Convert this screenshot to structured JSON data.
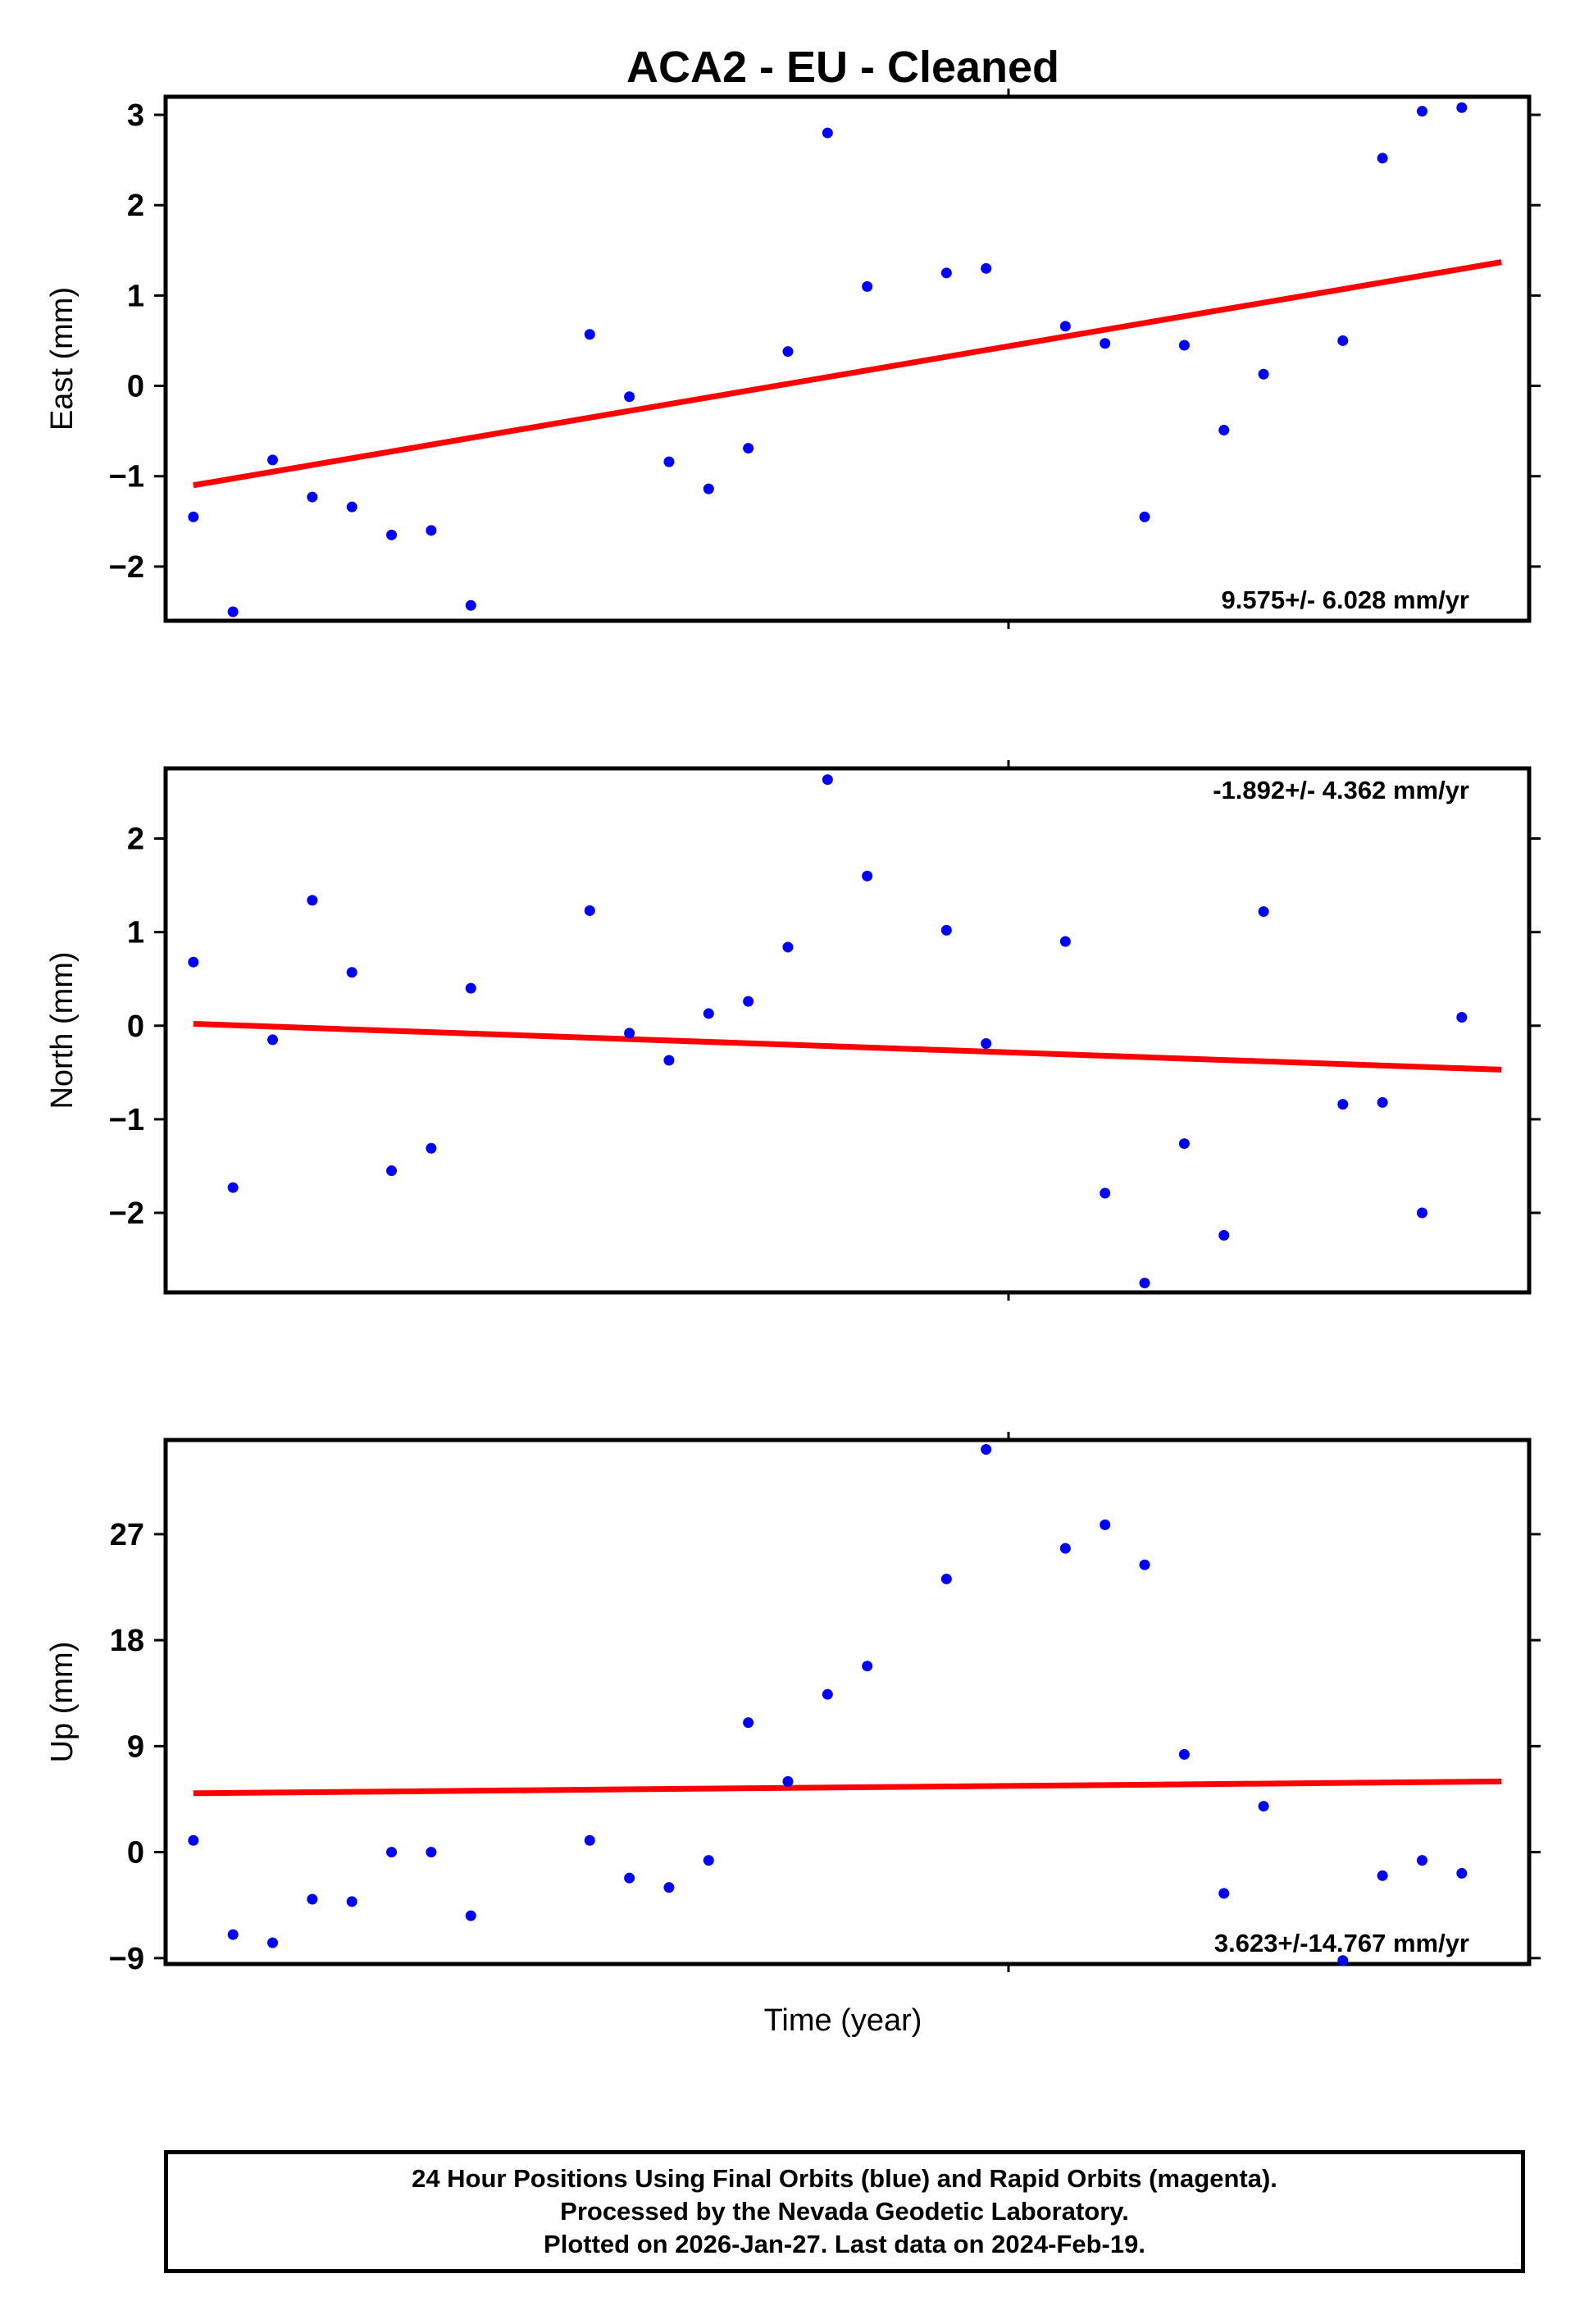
{
  "title": "ACA2  - EU - Cleaned",
  "xlabel": "Time (year)",
  "footer": {
    "line1": "24 Hour Positions Using Final Orbits (blue) and Rapid Orbits (magenta).",
    "line2": "Processed by the Nevada Geodetic Laboratory.",
    "line3": "Plotted on 2026-Jan-27. Last data on 2024-Feb-19."
  },
  "colors": {
    "final_orbits": "#0000ff",
    "trend": "#ff0000",
    "frame": "#000000"
  },
  "chart_data": [
    {
      "type": "scatter",
      "ylabel": "East (mm)",
      "ylim": [
        -2.6,
        3.2
      ],
      "yticks": [
        -2,
        -1,
        0,
        1,
        2,
        3
      ],
      "rate_label": "9.575+/- 6.028 mm/yr",
      "rate_position": "bottom-right",
      "x": [
        1,
        2,
        3,
        4,
        5,
        6,
        7,
        8,
        11,
        12,
        13,
        14,
        15,
        16,
        17,
        18,
        20,
        21,
        23,
        24,
        25,
        26,
        27,
        28,
        30,
        31,
        32,
        33,
        34
      ],
      "values": [
        -1.45,
        -2.5,
        -0.82,
        -1.23,
        -1.34,
        -1.65,
        -1.6,
        -2.43,
        0.57,
        -0.12,
        -0.84,
        -1.14,
        -0.69,
        0.38,
        2.8,
        1.1,
        1.25,
        1.3,
        0.66,
        0.47,
        -1.45,
        0.45,
        -0.49,
        0.13,
        0.5,
        2.52,
        3.04,
        3.08,
        null
      ],
      "trend": [
        -1.1,
        1.37
      ]
    },
    {
      "type": "scatter",
      "ylabel": "North (mm)",
      "ylim": [
        -2.85,
        2.75
      ],
      "yticks": [
        -2,
        -1,
        0,
        1,
        2
      ],
      "rate_label": "-1.892+/- 4.362 mm/yr",
      "rate_position": "top-right",
      "x": [
        1,
        2,
        3,
        4,
        5,
        6,
        7,
        8,
        11,
        12,
        13,
        14,
        15,
        16,
        17,
        18,
        20,
        21,
        23,
        24,
        25,
        26,
        27,
        28,
        30,
        31,
        32,
        33,
        34
      ],
      "values": [
        0.68,
        -1.73,
        -0.15,
        1.34,
        0.57,
        -1.55,
        -1.31,
        0.4,
        1.23,
        -0.08,
        -0.37,
        0.13,
        0.26,
        0.84,
        2.63,
        1.6,
        1.02,
        -0.19,
        0.9,
        -1.79,
        -2.75,
        -1.26,
        -2.24,
        1.22,
        -0.84,
        -0.82,
        -2.0,
        0.09,
        null
      ],
      "trend": [
        0.02,
        -0.47
      ]
    },
    {
      "type": "scatter",
      "ylabel": "Up (mm)",
      "ylim": [
        -9.5,
        35
      ],
      "yticks": [
        -9,
        0,
        9,
        18,
        27
      ],
      "rate_label": "3.623+/-14.767 mm/yr",
      "rate_position": "bottom-right",
      "x": [
        1,
        2,
        3,
        4,
        5,
        6,
        7,
        8,
        11,
        12,
        13,
        14,
        15,
        16,
        17,
        18,
        20,
        21,
        23,
        24,
        25,
        26,
        27,
        28,
        30,
        31,
        32,
        33,
        34
      ],
      "values": [
        1.0,
        -7.0,
        -7.7,
        -4.0,
        -4.2,
        0.0,
        0.0,
        -5.4,
        1.0,
        -2.2,
        -3.0,
        -0.7,
        11.0,
        6.0,
        13.4,
        15.8,
        23.2,
        34.2,
        25.8,
        27.8,
        24.4,
        8.3,
        -3.5,
        3.9,
        -9.2,
        -2.0,
        -0.7,
        -1.8,
        null
      ],
      "trend": [
        5.0,
        6.0
      ]
    }
  ]
}
